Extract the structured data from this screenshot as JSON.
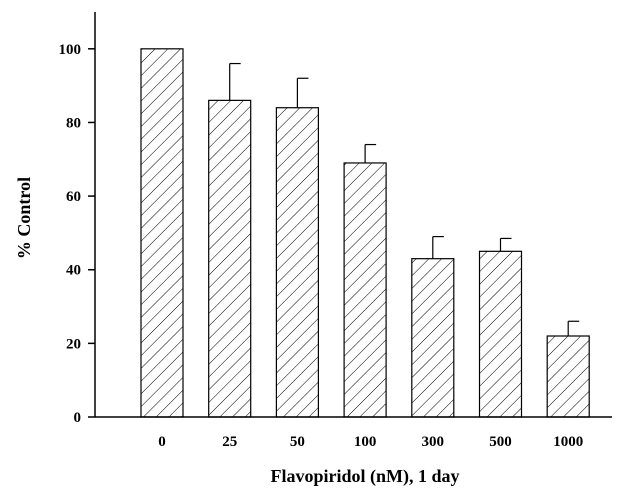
{
  "chart_data": {
    "type": "bar",
    "title": "",
    "xlabel": "Flavopiridol (nM), 1 day",
    "ylabel": "% Control",
    "categories": [
      "0",
      "25",
      "50",
      "100",
      "300",
      "500",
      "1000"
    ],
    "values": [
      100,
      86,
      84,
      69,
      43,
      45,
      22
    ],
    "error_upper": [
      0,
      10,
      8,
      5,
      6,
      3.5,
      4
    ],
    "ylim": [
      0,
      110
    ],
    "yticks": [
      0,
      20,
      40,
      60,
      80,
      100
    ],
    "grid": false,
    "legend": "none",
    "bar_fill": "hatched",
    "colors": {
      "bar_stroke": "#000000",
      "hatch": "#000000",
      "background": "#ffffff"
    }
  }
}
